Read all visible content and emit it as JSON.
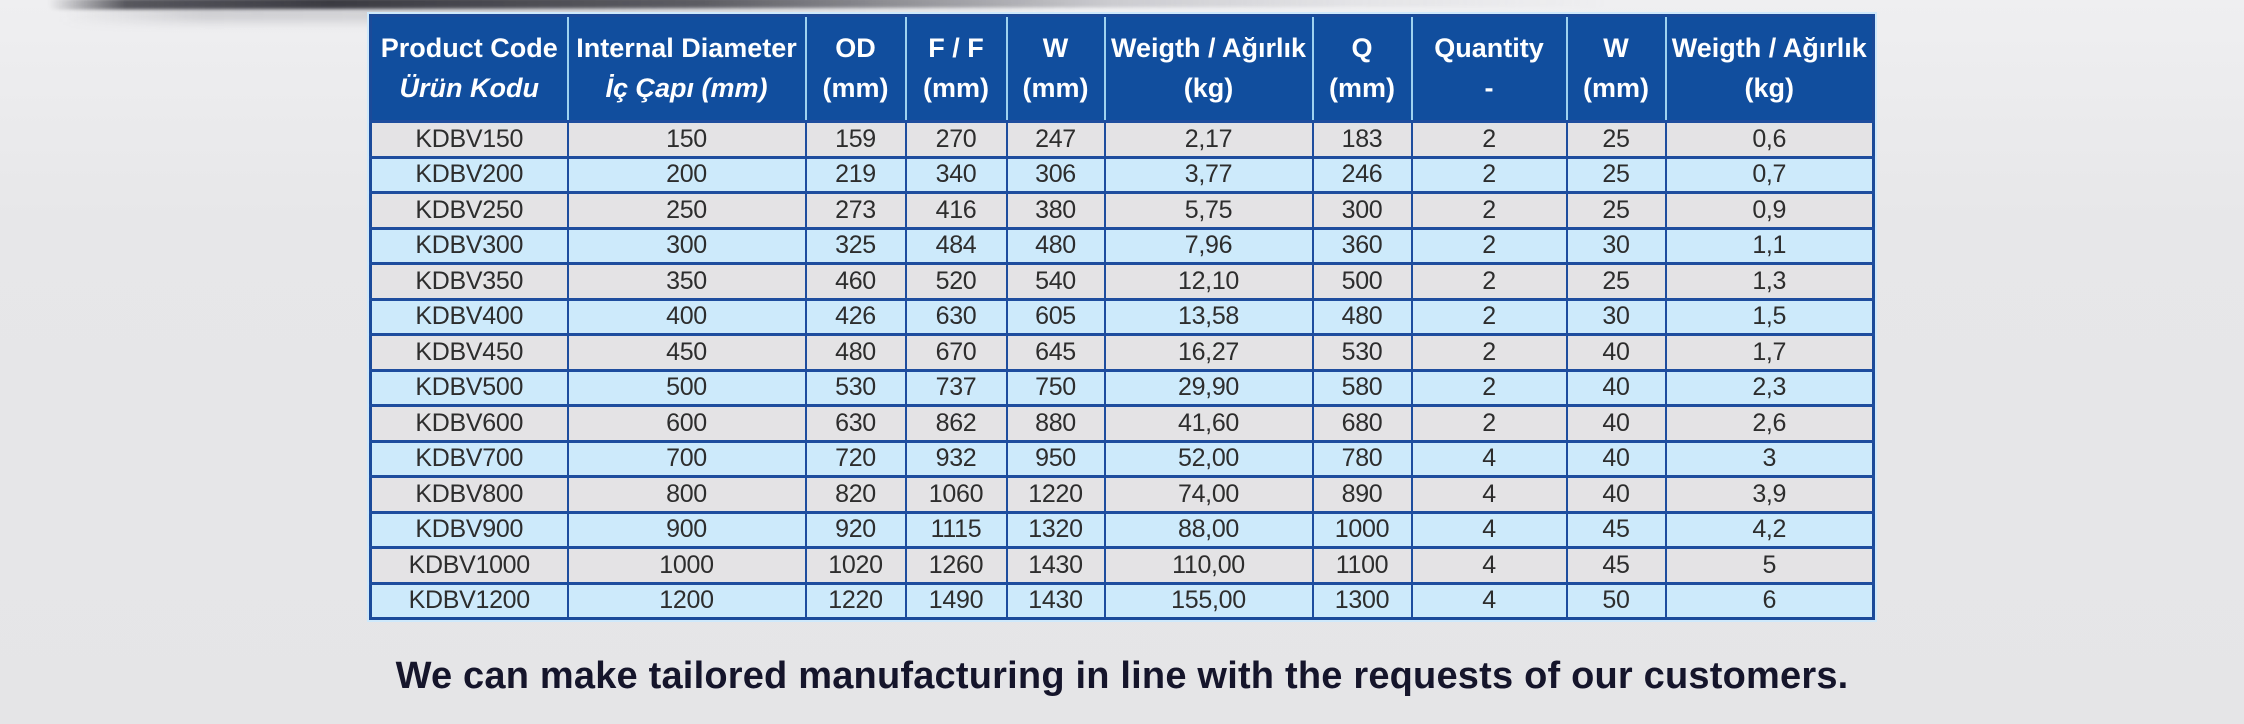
{
  "page": {
    "footer_note": "We can make tailored manufacturing in line with the requests of our customers."
  },
  "colors": {
    "header_bg": "#114e9e",
    "border_dark": "#1e4d9e",
    "header_separator": "#9fd2ef",
    "pale_outline": "#cfe9fb",
    "row_gray": "#e4e3e5",
    "row_blue": "#cdeafb",
    "header_text": "#ffffff",
    "cell_text": "#2d2d2d",
    "footer_text": "#15152b"
  },
  "table": {
    "columns": [
      {
        "en": "Product Code",
        "tr": "Ürün Kodu",
        "italic_tr": true
      },
      {
        "en": "Internal Diameter",
        "tr": "İç Çapı (mm)",
        "italic_tr": true
      },
      {
        "en": "OD",
        "tr": "(mm)",
        "italic_tr": false
      },
      {
        "en": "F / F",
        "tr": "(mm)",
        "italic_tr": false
      },
      {
        "en": "W",
        "tr": "(mm)",
        "italic_tr": false
      },
      {
        "en": "Weigth / Ağırlık",
        "tr": "(kg)",
        "italic_tr": false
      },
      {
        "en": "Q",
        "tr": "(mm)",
        "italic_tr": false
      },
      {
        "en": "Quantity",
        "tr": "-",
        "italic_tr": false
      },
      {
        "en": "W",
        "tr": "(mm)",
        "italic_tr": false
      },
      {
        "en": "Weigth / Ağırlık",
        "tr": "(kg)",
        "italic_tr": false
      }
    ],
    "rows": [
      [
        "KDBV150",
        "150",
        "159",
        "270",
        "247",
        "2,17",
        "183",
        "2",
        "25",
        "0,6"
      ],
      [
        "KDBV200",
        "200",
        "219",
        "340",
        "306",
        "3,77",
        "246",
        "2",
        "25",
        "0,7"
      ],
      [
        "KDBV250",
        "250",
        "273",
        "416",
        "380",
        "5,75",
        "300",
        "2",
        "25",
        "0,9"
      ],
      [
        "KDBV300",
        "300",
        "325",
        "484",
        "480",
        "7,96",
        "360",
        "2",
        "30",
        "1,1"
      ],
      [
        "KDBV350",
        "350",
        "460",
        "520",
        "540",
        "12,10",
        "500",
        "2",
        "25",
        "1,3"
      ],
      [
        "KDBV400",
        "400",
        "426",
        "630",
        "605",
        "13,58",
        "480",
        "2",
        "30",
        "1,5"
      ],
      [
        "KDBV450",
        "450",
        "480",
        "670",
        "645",
        "16,27",
        "530",
        "2",
        "40",
        "1,7"
      ],
      [
        "KDBV500",
        "500",
        "530",
        "737",
        "750",
        "29,90",
        "580",
        "2",
        "40",
        "2,3"
      ],
      [
        "KDBV600",
        "600",
        "630",
        "862",
        "880",
        "41,60",
        "680",
        "2",
        "40",
        "2,6"
      ],
      [
        "KDBV700",
        "700",
        "720",
        "932",
        "950",
        "52,00",
        "780",
        "4",
        "40",
        "3"
      ],
      [
        "KDBV800",
        "800",
        "820",
        "1060",
        "1220",
        "74,00",
        "890",
        "4",
        "40",
        "3,9"
      ],
      [
        "KDBV900",
        "900",
        "920",
        "1115",
        "1320",
        "88,00",
        "1000",
        "4",
        "45",
        "4,2"
      ],
      [
        "KDBV1000",
        "1000",
        "1020",
        "1260",
        "1430",
        "110,00",
        "1100",
        "4",
        "45",
        "5"
      ],
      [
        "KDBV1200",
        "1200",
        "1220",
        "1490",
        "1430",
        "155,00",
        "1300",
        "4",
        "50",
        "6"
      ]
    ]
  }
}
